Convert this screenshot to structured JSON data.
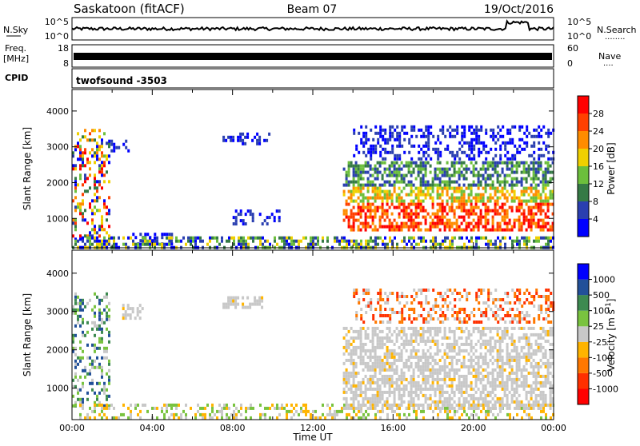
{
  "header": {
    "station": "Saskatoon (fitACF)",
    "beam": "Beam 07",
    "date": "19/Oct/2016",
    "cpid_label": "CPID",
    "cpid_value": "twofsound -3503"
  },
  "strips": {
    "nsky": {
      "label": "N.Sky",
      "left_ticks": [
        "10^5",
        "10^0"
      ],
      "right_ticks": [
        "10^5",
        "10^0"
      ],
      "right_label": "N.Search",
      "right_dots": "........"
    },
    "freq": {
      "label_line1": "Freq.",
      "label_line2": "[MHz]",
      "left_ticks": [
        "18",
        "8"
      ],
      "right_ticks": [
        "60",
        "0"
      ],
      "right_label": "Nave",
      "right_dots": "...."
    }
  },
  "colors": {
    "power": [
      "#0000ff",
      "#2a3fb0",
      "#357a45",
      "#6cbf3c",
      "#f0d000",
      "#ff8c00",
      "#ff4000",
      "#ff0000"
    ],
    "velocity": [
      "#0000ff",
      "#225099",
      "#3d8a50",
      "#79c33f",
      "#c8c8c8",
      "#ffb400",
      "#ff7800",
      "#ff3000",
      "#ff0000"
    ],
    "gray": "#c8c8c8"
  },
  "chart_data": [
    {
      "type": "heatmap",
      "name": "power",
      "xlabel": "",
      "ylabel": "Slant Range [km]",
      "x_ticks": [
        "00:00",
        "04:00",
        "08:00",
        "12:00",
        "16:00",
        "20:00",
        "00:00"
      ],
      "y_ticks": [
        "1000",
        "2000",
        "3000",
        "4000"
      ],
      "y_tick_values": [
        1000,
        2000,
        3000,
        4000
      ],
      "x_range_hours": [
        0,
        24
      ],
      "ylim": [
        180,
        4600
      ],
      "colorbar": {
        "label": "Power [dB]",
        "ticks": [
          "4",
          "8",
          "12",
          "16",
          "20",
          "24",
          "28"
        ],
        "range": [
          0,
          32
        ]
      },
      "regions": [
        {
          "t": [
            0.0,
            1.9
          ],
          "r": [
            400,
            3500
          ],
          "level": "mixed"
        },
        {
          "t": [
            1.8,
            2.8
          ],
          "r": [
            2900,
            3200
          ],
          "level": "low"
        },
        {
          "t": [
            3.0,
            5.0
          ],
          "r": [
            300,
            600
          ],
          "level": "low"
        },
        {
          "t": [
            7.5,
            9.8
          ],
          "r": [
            3100,
            3400
          ],
          "level": "low"
        },
        {
          "t": [
            8.0,
            10.5
          ],
          "r": [
            850,
            1250
          ],
          "level": "low"
        },
        {
          "t": [
            0.0,
            24.0
          ],
          "r": [
            200,
            500
          ],
          "level": "low-mid"
        },
        {
          "t": [
            13.5,
            24.0
          ],
          "r": [
            650,
            2600
          ],
          "level": "high"
        },
        {
          "t": [
            14.0,
            24.0
          ],
          "r": [
            2700,
            3600
          ],
          "level": "low"
        }
      ]
    },
    {
      "type": "heatmap",
      "name": "velocity",
      "xlabel": "Time UT",
      "ylabel": "Slant Range [km]",
      "x_ticks": [
        "00:00",
        "04:00",
        "08:00",
        "12:00",
        "16:00",
        "20:00",
        "00:00"
      ],
      "y_ticks": [
        "1000",
        "2000",
        "3000",
        "4000"
      ],
      "y_tick_values": [
        1000,
        2000,
        3000,
        4000
      ],
      "x_range_hours": [
        0,
        24
      ],
      "ylim": [
        180,
        4600
      ],
      "colorbar": {
        "label": "Velocity [m s^-1]",
        "ticks": [
          "1000",
          "500",
          "100",
          "25",
          "-25",
          "-100",
          "-500",
          "-1000"
        ]
      },
      "regions": [
        {
          "t": [
            0.0,
            1.9
          ],
          "r": [
            500,
            3500
          ],
          "level": "mixed"
        },
        {
          "t": [
            2.5,
            3.5
          ],
          "r": [
            2800,
            3200
          ],
          "level": "gray"
        },
        {
          "t": [
            7.5,
            9.5
          ],
          "r": [
            3100,
            3400
          ],
          "level": "gray"
        },
        {
          "t": [
            0.0,
            24.0
          ],
          "r": [
            200,
            600
          ],
          "level": "slow"
        },
        {
          "t": [
            13.5,
            24.0
          ],
          "r": [
            500,
            2600
          ],
          "level": "gray"
        },
        {
          "t": [
            14.0,
            24.0
          ],
          "r": [
            2700,
            3600
          ],
          "level": "neg"
        }
      ]
    }
  ]
}
